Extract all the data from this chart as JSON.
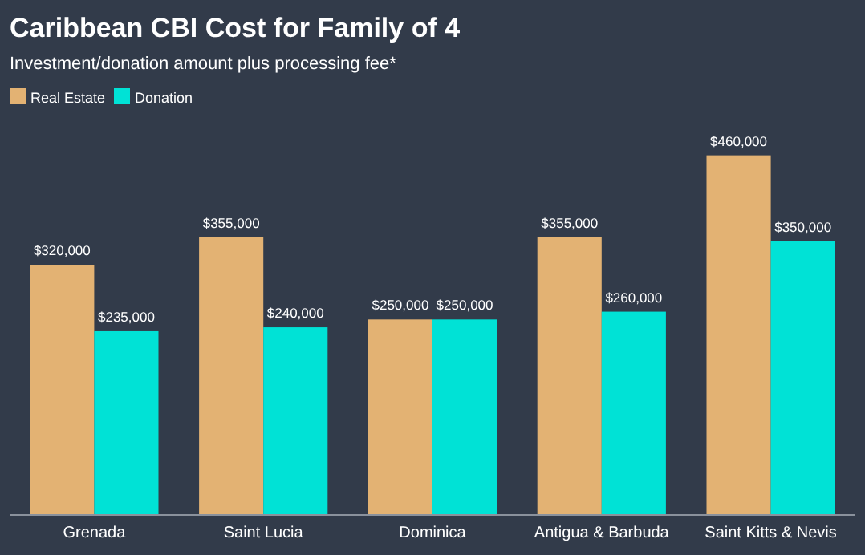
{
  "chart_data": {
    "type": "bar",
    "title": "Caribbean CBI Cost for Family of 4",
    "subtitle": "Investment/donation amount plus processing fee*",
    "categories": [
      "Grenada",
      "Saint Lucia",
      "Dominica",
      "Antigua & Barbuda",
      "Saint Kitts & Nevis"
    ],
    "series": [
      {
        "name": "Real Estate",
        "color": "#e3b273",
        "values": [
          320000,
          355000,
          250000,
          355000,
          460000
        ],
        "value_labels": [
          "$320,000",
          "$355,000",
          "$250,000",
          "$355,000",
          "$460,000"
        ]
      },
      {
        "name": "Donation",
        "color": "#00e2d6",
        "values": [
          235000,
          240000,
          250000,
          260000,
          350000
        ],
        "value_labels": [
          "$235,000",
          "$240,000",
          "$250,000",
          "$260,000",
          "$350,000"
        ]
      }
    ],
    "legend": "top left",
    "grid": false
  }
}
